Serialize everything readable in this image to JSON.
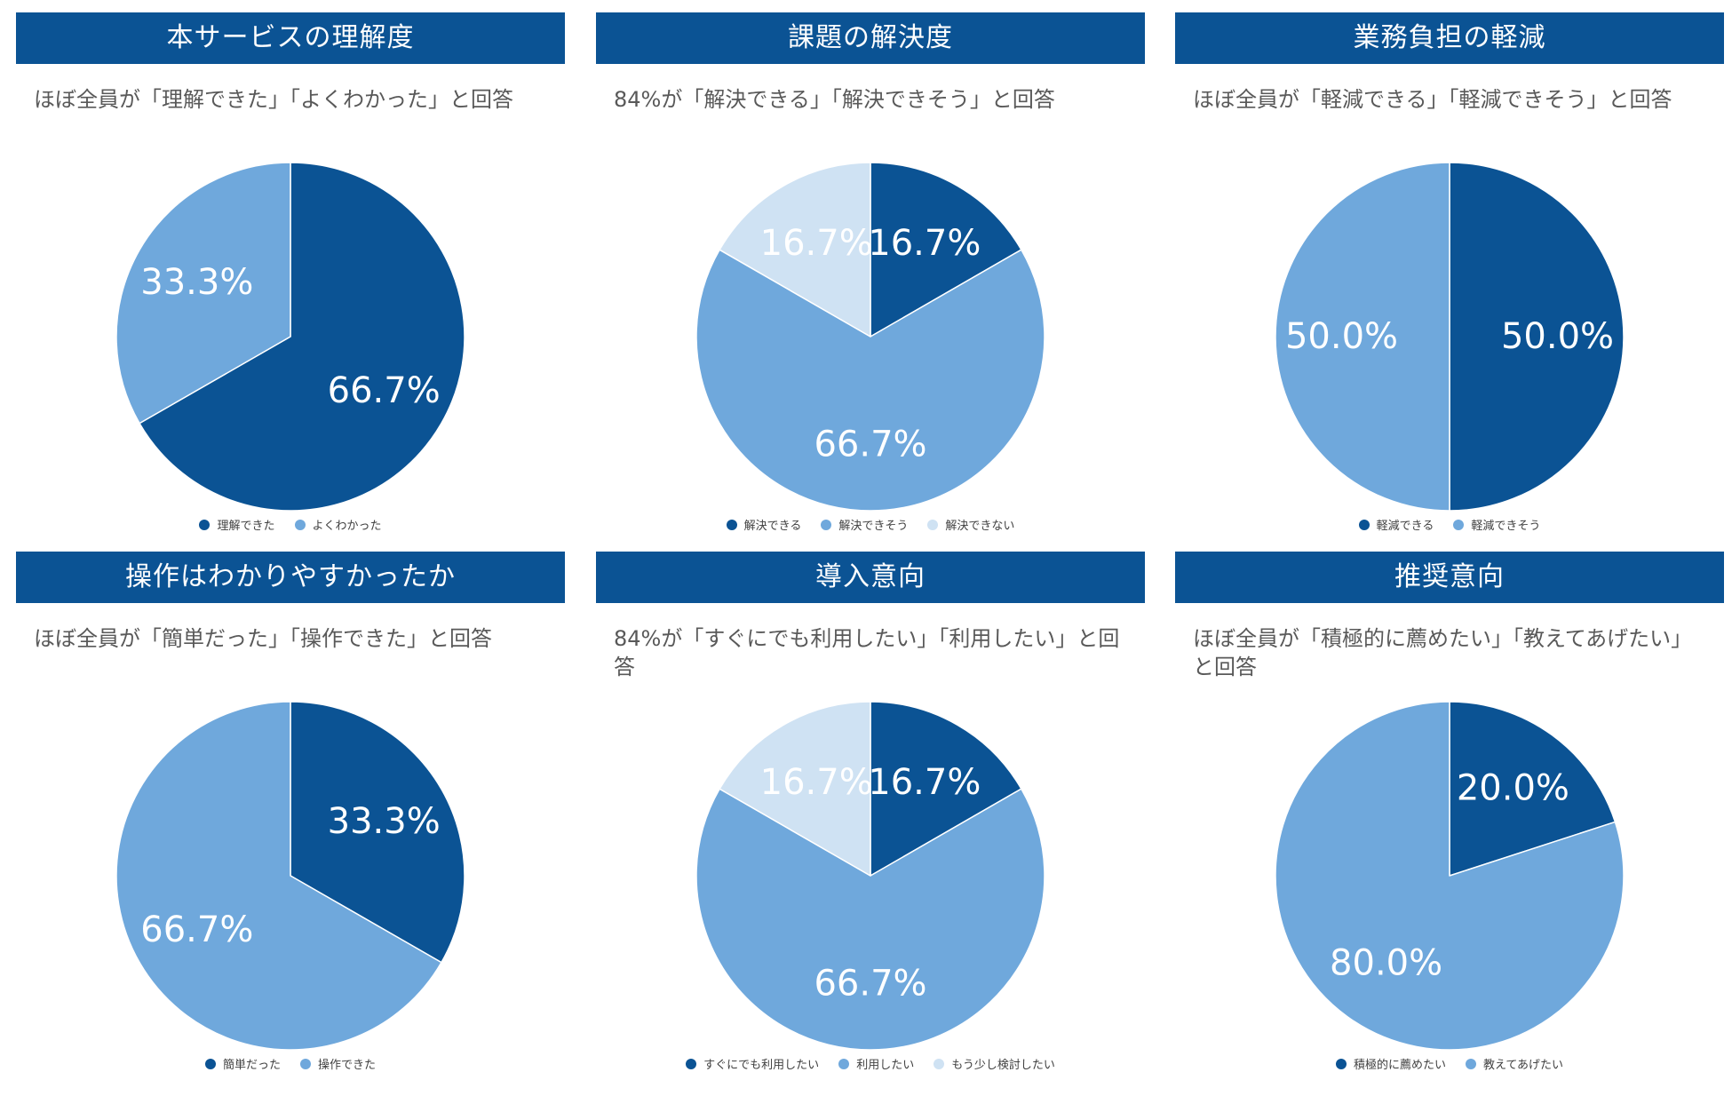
{
  "colors": {
    "header_bg": "#0b5394",
    "header_text": "#ffffff",
    "subtitle_text": "#595959",
    "legend_text": "#404040",
    "dark_blue": "#0b5394",
    "mid_blue": "#6fa8dc",
    "light_blue": "#cfe2f3"
  },
  "chart_data": [
    {
      "type": "pie",
      "title": "本サービスの理解度",
      "subtitle": "ほぼ全員が「理解できた」「よくわかった」と回答",
      "slices": [
        {
          "label": "理解できた",
          "value": 66.7,
          "display": "66.7%",
          "color": "#0b5394",
          "label_color": "#ffffff"
        },
        {
          "label": "よくわかった",
          "value": 33.3,
          "display": "33.3%",
          "color": "#6fa8dc",
          "label_color": "#ffffff"
        }
      ],
      "legend_placement": "bottom"
    },
    {
      "type": "pie",
      "title": "課題の解決度",
      "subtitle": "84%が「解決できる」「解決できそう」と回答",
      "slices": [
        {
          "label": "解決できる",
          "value": 16.7,
          "display": "16.7%",
          "color": "#0b5394",
          "label_color": "#ffffff"
        },
        {
          "label": "解決できそう",
          "value": 66.7,
          "display": "66.7%",
          "color": "#6fa8dc",
          "label_color": "#ffffff"
        },
        {
          "label": "解決できない",
          "value": 16.7,
          "display": "16.7%",
          "color": "#cfe2f3",
          "label_color": "#ffffff"
        }
      ],
      "legend_placement": "bottom"
    },
    {
      "type": "pie",
      "title": "業務負担の軽減",
      "subtitle": "ほぼ全員が「軽減できる」「軽減できそう」と回答",
      "slices": [
        {
          "label": "軽減できる",
          "value": 50.0,
          "display": "50.0%",
          "color": "#0b5394",
          "label_color": "#ffffff"
        },
        {
          "label": "軽減できそう",
          "value": 50.0,
          "display": "50.0%",
          "color": "#6fa8dc",
          "label_color": "#ffffff"
        }
      ],
      "legend_placement": "bottom"
    },
    {
      "type": "pie",
      "title": "操作はわかりやすかったか",
      "subtitle": "ほぼ全員が「簡単だった」「操作できた」と回答",
      "slices": [
        {
          "label": "簡単だった",
          "value": 33.3,
          "display": "33.3%",
          "color": "#0b5394",
          "label_color": "#ffffff"
        },
        {
          "label": "操作できた",
          "value": 66.7,
          "display": "66.7%",
          "color": "#6fa8dc",
          "label_color": "#ffffff"
        }
      ],
      "legend_placement": "bottom"
    },
    {
      "type": "pie",
      "title": "導入意向",
      "subtitle": "84%が「すぐにでも利用したい」「利用したい」と回答",
      "slices": [
        {
          "label": "すぐにでも利用したい",
          "value": 16.7,
          "display": "16.7%",
          "color": "#0b5394",
          "label_color": "#ffffff"
        },
        {
          "label": "利用したい",
          "value": 66.7,
          "display": "66.7%",
          "color": "#6fa8dc",
          "label_color": "#ffffff"
        },
        {
          "label": "もう少し検討したい",
          "value": 16.7,
          "display": "16.7%",
          "color": "#cfe2f3",
          "label_color": "#ffffff"
        }
      ],
      "legend_placement": "bottom"
    },
    {
      "type": "pie",
      "title": "推奨意向",
      "subtitle": "ほぼ全員が「積極的に薦めたい」「教えてあげたい」と回答",
      "slices": [
        {
          "label": "積極的に薦めたい",
          "value": 20.0,
          "display": "20.0%",
          "color": "#0b5394",
          "label_color": "#ffffff"
        },
        {
          "label": "教えてあげたい",
          "value": 80.0,
          "display": "80.0%",
          "color": "#6fa8dc",
          "label_color": "#ffffff"
        }
      ],
      "legend_placement": "bottom"
    }
  ]
}
